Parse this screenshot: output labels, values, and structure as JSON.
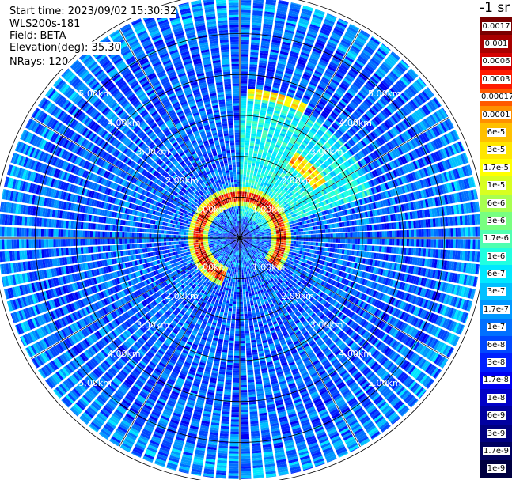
{
  "header": {
    "start_time": "Start time: 2023/09/02 15:30:32",
    "device": "WLS200s-181",
    "field": "Field: BETA",
    "elevation": "Elevation(deg): 35.30",
    "nrays": "NRays: 120"
  },
  "colorbar": {
    "title": "-1 sr",
    "labels": [
      "0.0017",
      "0.001",
      "0.0006",
      "0.0003",
      "0.00017",
      "0.0001",
      "6e-5",
      "3e-5",
      "1.7e-5",
      "1e-5",
      "6e-6",
      "3e-6",
      "1.7e-6",
      "1e-6",
      "6e-7",
      "3e-7",
      "1.7e-7",
      "1e-7",
      "6e-8",
      "3e-8",
      "1.7e-8",
      "1e-8",
      "6e-9",
      "3e-9",
      "1.7e-9",
      "1e-9"
    ],
    "colors": [
      "#7a0000",
      "#a80000",
      "#d40000",
      "#ff1a00",
      "#ff5a00",
      "#ff9000",
      "#ffc000",
      "#ffe600",
      "#ffff00",
      "#d8ff20",
      "#a8ff50",
      "#78ff80",
      "#50ffb0",
      "#20ffe0",
      "#00e8ff",
      "#00c0ff",
      "#0098ff",
      "#0070ff",
      "#0048ff",
      "#0020ff",
      "#0000f0",
      "#0000c8",
      "#0000a0",
      "#000080",
      "#000060",
      "#000040"
    ]
  },
  "chart_data": {
    "type": "heatmap",
    "projection": "polar PPI",
    "nrays": 120,
    "range_rings_km": [
      1,
      2,
      3,
      4,
      5,
      6
    ],
    "range_ring_labels": [
      "1.00km",
      "2.00km",
      "3.00km",
      "4.00km",
      "5.00km"
    ],
    "max_range_km": 5.9,
    "spokes_deg": [
      0,
      30,
      60,
      90,
      120,
      150,
      180,
      210,
      240,
      270,
      300,
      330
    ],
    "dominant_value": "≈3e-8 to 1.7e-7 (blue/cyan background)",
    "features": [
      {
        "description": "high-backscatter ring (red/orange)",
        "range_km": [
          0.8,
          1.2
        ],
        "sector": "west through south-east"
      },
      {
        "description": "cyan elevated region",
        "sector_deg": [
          0,
          70
        ],
        "range_km": [
          1.0,
          3.5
        ]
      },
      {
        "description": "orange/yellow arc at upper edge",
        "sector_deg": [
          0,
          30
        ],
        "range_km": [
          3.4,
          3.6
        ]
      },
      {
        "description": "red/orange band",
        "sector_deg": [
          35,
          55
        ],
        "range_km": [
          2.2,
          2.5
        ]
      }
    ]
  }
}
